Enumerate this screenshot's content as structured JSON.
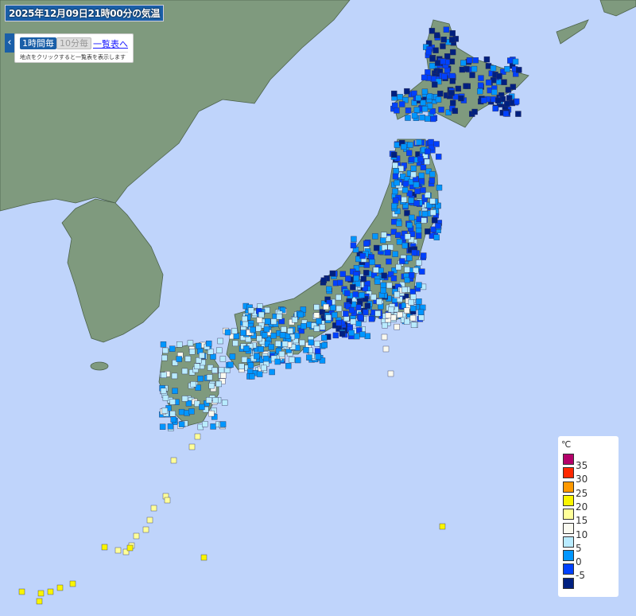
{
  "header": {
    "title": "2025年12月09日21時00分の気温"
  },
  "controls": {
    "collapse_icon": "chevron-left-icon",
    "collapse_glyph": "‹",
    "hourly_label": "1時間毎",
    "ten_min_label": "10分毎",
    "list_link": "一覧表へ",
    "hint": "地点をクリックすると一覧表を表示します"
  },
  "legend": {
    "unit": "℃",
    "items": [
      {
        "color": "#b4006a",
        "label": "35"
      },
      {
        "color": "#ff2800",
        "label": "30"
      },
      {
        "color": "#ff9900",
        "label": "25"
      },
      {
        "color": "#faf500",
        "label": "20"
      },
      {
        "color": "#ffff99",
        "label": "15"
      },
      {
        "color": "#fafaf0",
        "label": "10"
      },
      {
        "color": "#b9ebff",
        "label": "5"
      },
      {
        "color": "#0096ff",
        "label": "0"
      },
      {
        "color": "#0041ff",
        "label": "-5"
      },
      {
        "color": "#002080",
        "label": ""
      }
    ]
  },
  "colors": {
    "sea": "#bfd4fb",
    "land": "#7f9a7e",
    "accent": "#1a5fa8"
  }
}
